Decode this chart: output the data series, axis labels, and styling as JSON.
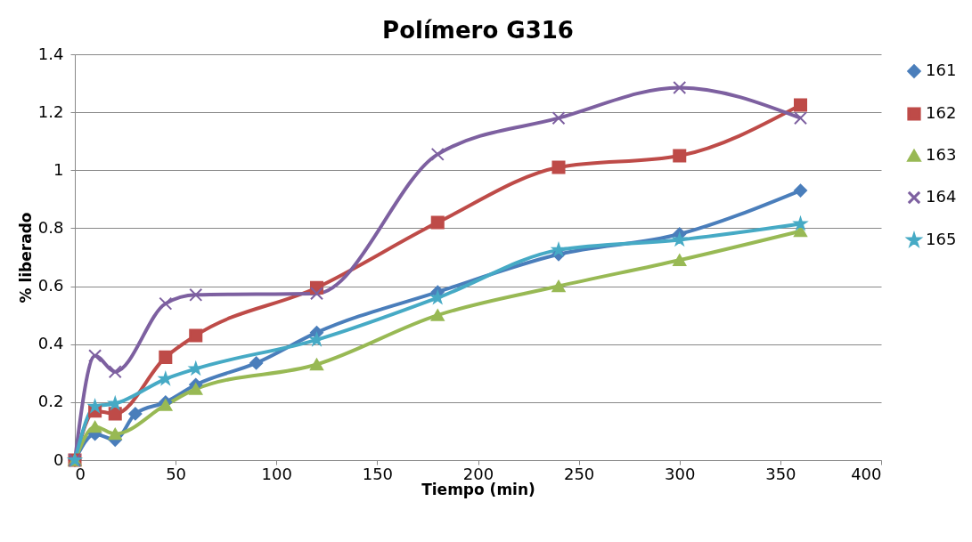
{
  "chart_data": {
    "type": "line",
    "title": "Polímero G316",
    "xlabel": "Tiempo (min)",
    "ylabel": "% liberado",
    "xlim": [
      0,
      400
    ],
    "xticks": [
      0,
      50,
      100,
      150,
      200,
      250,
      300,
      350,
      400
    ],
    "ylim": [
      0,
      1.4
    ],
    "yticks": [
      0,
      0.2,
      0.4,
      0.6,
      0.8,
      1,
      1.2,
      1.4
    ],
    "grid": "y",
    "legend": "right",
    "series": [
      {
        "name": "161",
        "color": "#4a7ebb",
        "marker": "diamond",
        "x": [
          0,
          10,
          20,
          30,
          45,
          60,
          90,
          120,
          180,
          240,
          300,
          360
        ],
        "values": [
          0,
          0.09,
          0.07,
          0.16,
          0.2,
          0.26,
          0.335,
          0.44,
          0.58,
          0.71,
          0.78,
          0.93
        ]
      },
      {
        "name": "162",
        "color": "#be4b48",
        "marker": "square",
        "x": [
          0,
          10,
          20,
          45,
          60,
          120,
          180,
          240,
          300,
          360
        ],
        "values": [
          0,
          0.17,
          0.16,
          0.355,
          0.43,
          0.595,
          0.82,
          1.01,
          1.05,
          1.225
        ]
      },
      {
        "name": "163",
        "color": "#98b954",
        "marker": "triangle",
        "x": [
          0,
          10,
          20,
          45,
          60,
          120,
          180,
          240,
          300,
          360
        ],
        "values": [
          0,
          0.115,
          0.09,
          0.19,
          0.245,
          0.33,
          0.5,
          0.6,
          0.69,
          0.79
        ]
      },
      {
        "name": "164",
        "color": "#7d60a0",
        "marker": "cross",
        "x": [
          0,
          10,
          20,
          45,
          60,
          120,
          180,
          240,
          300,
          360
        ],
        "values": [
          0,
          0.36,
          0.305,
          0.54,
          0.57,
          0.575,
          1.055,
          1.18,
          1.285,
          1.18
        ]
      },
      {
        "name": "165",
        "color": "#46aac5",
        "marker": "star",
        "x": [
          0,
          10,
          20,
          45,
          60,
          120,
          180,
          240,
          300,
          360
        ],
        "values": [
          0,
          0.185,
          0.195,
          0.28,
          0.315,
          0.415,
          0.56,
          0.725,
          0.76,
          0.815
        ]
      }
    ]
  }
}
